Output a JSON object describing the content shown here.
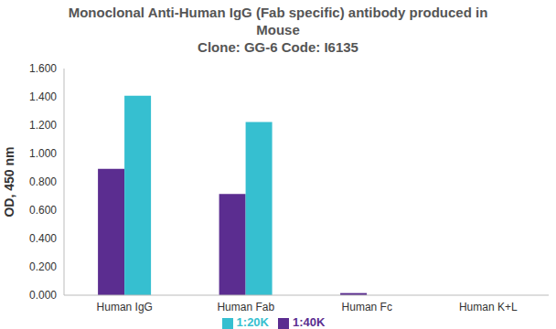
{
  "chart_data": {
    "type": "bar",
    "title": "Monoclonal Anti-Human IgG (Fab specific) antibody produced in Mouse",
    "subtitle": "Clone: GG-6  Code: I6135",
    "y_label": "OD, 450 nm",
    "categories": [
      "Human IgG",
      "Human Fab",
      "Human Fc",
      "Human K+L"
    ],
    "series": [
      {
        "name": "1:40K",
        "color": "#5b2d90",
        "values": [
          0.892,
          0.714,
          0.015,
          0
        ]
      },
      {
        "name": "1:20K",
        "color": "#36bfd0",
        "values": [
          1.408,
          1.222,
          0,
          0
        ]
      }
    ],
    "ylim": [
      0,
      1.6
    ],
    "yticks": [
      {
        "value": 0,
        "label": "0.000"
      },
      {
        "value": 0.2,
        "label": "0.200"
      },
      {
        "value": 0.4,
        "label": "0.400"
      },
      {
        "value": 0.6,
        "label": "0.600"
      },
      {
        "value": 0.8,
        "label": "0.800"
      },
      {
        "value": 1.0,
        "label": "1.000"
      },
      {
        "value": 1.2,
        "label": "1.200"
      },
      {
        "value": 1.4,
        "label": "1.400"
      },
      {
        "value": 1.6,
        "label": "1.600"
      }
    ],
    "grid": false,
    "legend": "bottom"
  }
}
